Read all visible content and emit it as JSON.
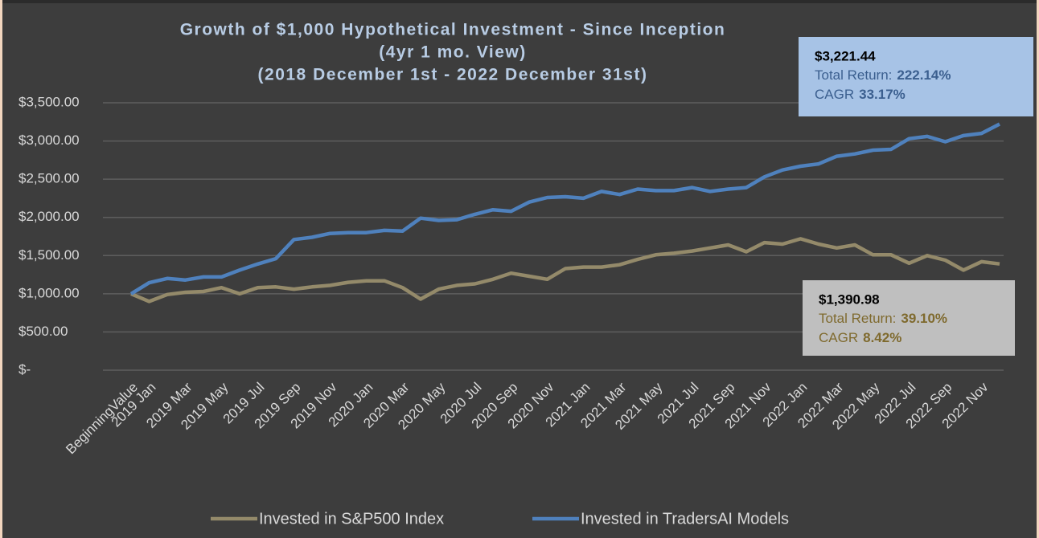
{
  "chart_data": {
    "type": "line",
    "title": [
      "Growth of $1,000 Hypothetical Investment - Since Inception",
      "(4yr 1 mo. View)",
      "(2018 December 1st - 2022 December 31st)"
    ],
    "categories": [
      "BeginningValue",
      "2019 Jan",
      null,
      "2019 Mar",
      null,
      "2019 May",
      null,
      "2019 Jul",
      null,
      "2019 Sep",
      null,
      "2019 Nov",
      null,
      "2020 Jan",
      null,
      "2020 Mar",
      null,
      "2020 May",
      null,
      "2020 Jul",
      null,
      "2020 Sep",
      null,
      "2020 Nov",
      null,
      "2021 Jan",
      null,
      "2021 Mar",
      null,
      "2021 May",
      null,
      "2021 Jul",
      null,
      "2021 Sep",
      null,
      "2021 Nov",
      null,
      "2022 Jan",
      null,
      "2022 Mar",
      null,
      "2022 May",
      null,
      "2022 Jul",
      null,
      "2022 Sep",
      null,
      "2022 Nov",
      null
    ],
    "series": [
      {
        "name": "Invested in S&P500 Index",
        "color": "#948a6a",
        "values": [
          1000,
          900,
          990,
          1020,
          1030,
          1080,
          1000,
          1080,
          1090,
          1060,
          1090,
          1110,
          1150,
          1170,
          1170,
          1080,
          930,
          1060,
          1110,
          1130,
          1190,
          1270,
          1230,
          1190,
          1330,
          1350,
          1350,
          1380,
          1450,
          1510,
          1530,
          1560,
          1600,
          1640,
          1550,
          1670,
          1650,
          1720,
          1650,
          1600,
          1640,
          1510,
          1510,
          1400,
          1500,
          1440,
          1310,
          1420,
          1390.98
        ]
      },
      {
        "name": "Invested in TradersAI Models",
        "color": "#4f81bd",
        "values": [
          1000,
          1145,
          1200,
          1180,
          1220,
          1220,
          1310,
          1390,
          1460,
          1710,
          1740,
          1790,
          1800,
          1800,
          1830,
          1820,
          1990,
          1960,
          1970,
          2040,
          2100,
          2080,
          2200,
          2260,
          2270,
          2250,
          2340,
          2300,
          2370,
          2350,
          2350,
          2390,
          2340,
          2370,
          2390,
          2530,
          2620,
          2670,
          2700,
          2800,
          2830,
          2880,
          2890,
          3030,
          3060,
          2990,
          3070,
          3100,
          3221.44
        ]
      }
    ],
    "ylim": [
      0,
      3500
    ],
    "yticks": [
      {
        "value": 0,
        "label": "$-"
      },
      {
        "value": 500,
        "label": "$500.00"
      },
      {
        "value": 1000,
        "label": "$1,000.00"
      },
      {
        "value": 1500,
        "label": "$1,500.00"
      },
      {
        "value": 2000,
        "label": "$2,000.00"
      },
      {
        "value": 2500,
        "label": "$2,500.00"
      },
      {
        "value": 3000,
        "label": "$3,000.00"
      },
      {
        "value": 3500,
        "label": "$3,500.00"
      }
    ],
    "grid": true,
    "legend": "bottom",
    "annotations": [
      {
        "value": "$3,221.44",
        "total_return_label": "Total Return:",
        "total_return": "222.14%",
        "cagr_label": "CAGR",
        "cagr": "33.17%"
      },
      {
        "value": "$1,390.98",
        "total_return_label": "Total Return:",
        "total_return": "39.10%",
        "cagr_label": "CAGR",
        "cagr": "8.42%"
      }
    ]
  }
}
